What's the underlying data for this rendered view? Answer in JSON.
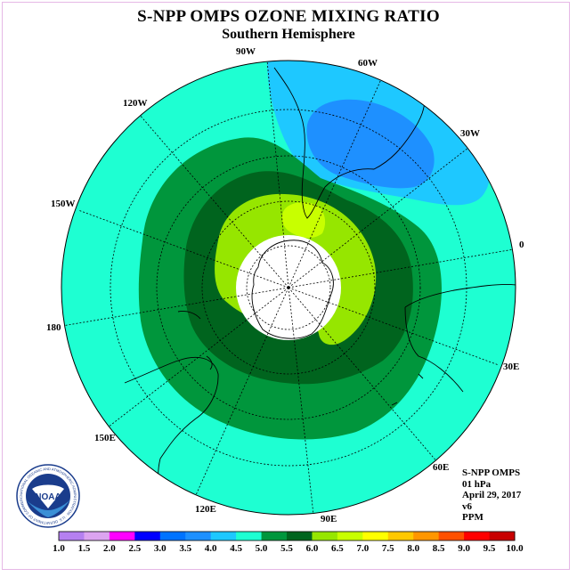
{
  "title": "S-NPP OMPS OZONE MIXING RATIO",
  "subtitle": "Southern Hemisphere",
  "logo": {
    "text": "NOAA",
    "ring_text": "NATIONAL OCEANIC AND ATMOSPHERIC ADMINISTRATION · U.S. DEPARTMENT OF COMMERCE"
  },
  "meridian_labels": [
    {
      "id": "90w",
      "text": "90W"
    },
    {
      "id": "60w",
      "text": "60W"
    },
    {
      "id": "30w",
      "text": "30W"
    },
    {
      "id": "0",
      "text": "0"
    },
    {
      "id": "30e",
      "text": "30E"
    },
    {
      "id": "60e",
      "text": "60E"
    },
    {
      "id": "90e",
      "text": "90E"
    },
    {
      "id": "120e",
      "text": "120E"
    },
    {
      "id": "150e",
      "text": "150E"
    },
    {
      "id": "180",
      "text": "180"
    },
    {
      "id": "150w",
      "text": "150W"
    },
    {
      "id": "120w",
      "text": "120W"
    }
  ],
  "info": {
    "instrument": "S-NPP OMPS",
    "level": "01 hPa",
    "date": "April 29, 2017",
    "version": "v6",
    "units": "PPM"
  },
  "colorbar": {
    "colors": [
      "#b580f0",
      "#dca4f0",
      "#ff00ff",
      "#0000ff",
      "#0073ff",
      "#1e90ff",
      "#1ec8ff",
      "#1effd2",
      "#00963c",
      "#00641e",
      "#96e600",
      "#c8ff00",
      "#ffff00",
      "#ffc800",
      "#ff9600",
      "#ff5000",
      "#ff0000",
      "#c80000",
      "#8b5a3c"
    ],
    "labels": [
      "1.0",
      "1.5",
      "2.0",
      "2.5",
      "3.0",
      "3.5",
      "4.0",
      "4.5",
      "5.0",
      "5.5",
      "6.0",
      "6.5",
      "7.0",
      "7.5",
      "8.0",
      "8.5",
      "9.0",
      "9.5",
      "10.0"
    ]
  },
  "map_colors": {
    "bg_level_4_5": "#1effd2",
    "level_3_5": "#1e90ff",
    "level_4_0": "#1ec8ff",
    "level_5_0": "#00963c",
    "level_5_5": "#00641e",
    "level_6_0": "#96e600",
    "level_6_5": "#c8ff00"
  }
}
